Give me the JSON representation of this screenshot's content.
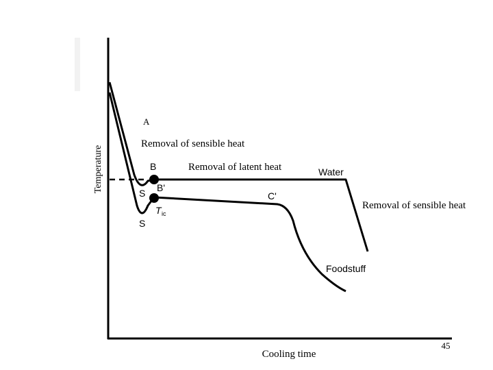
{
  "chart_data": {
    "type": "line",
    "xlabel": "Cooling time",
    "ylabel": "Temperature",
    "series": [
      {
        "name": "Water"
      },
      {
        "name": "Foodstuff"
      }
    ],
    "points": {
      "A": "A",
      "B": "B",
      "B_prime": "B'",
      "C_prime": "C'",
      "S_water": "S",
      "S_food": "S",
      "T_ic_main": "T",
      "T_ic_sub": "ic"
    },
    "annotations": [
      "Removal of sensible heat",
      "Removal of latent heat",
      "Removal of sensible heat"
    ]
  },
  "slide_number": "45"
}
